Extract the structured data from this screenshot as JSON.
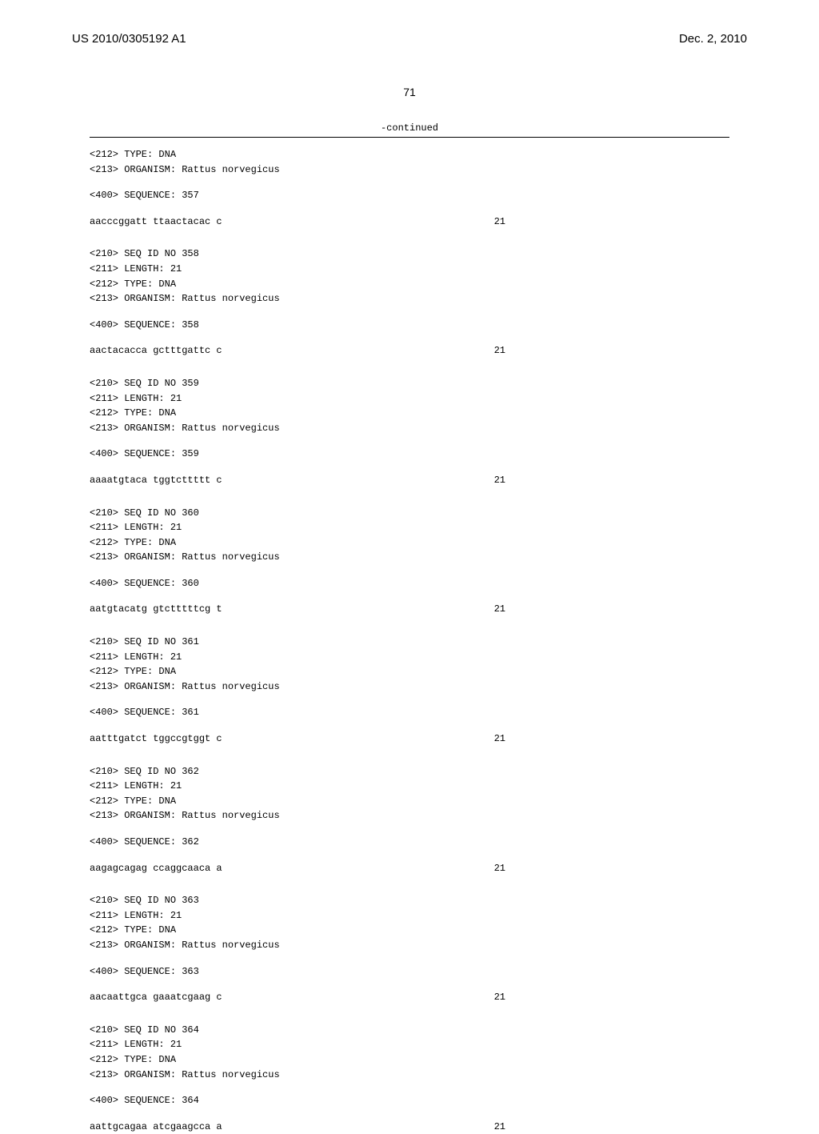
{
  "header": {
    "left": "US 2010/0305192 A1",
    "right": "Dec. 2, 2010"
  },
  "pageNumber": "71",
  "continuedLabel": "-continued",
  "tailBlock": {
    "lines": [
      "<212> TYPE: DNA",
      "<213> ORGANISM: Rattus norvegicus"
    ],
    "seqLabel": "<400> SEQUENCE: 357",
    "sequence": "aacccggatt ttaactacac c",
    "length": "21"
  },
  "blocks": [
    {
      "lines": [
        "<210> SEQ ID NO 358",
        "<211> LENGTH: 21",
        "<212> TYPE: DNA",
        "<213> ORGANISM: Rattus norvegicus"
      ],
      "seqLabel": "<400> SEQUENCE: 358",
      "sequence": "aactacacca gctttgattc c",
      "length": "21"
    },
    {
      "lines": [
        "<210> SEQ ID NO 359",
        "<211> LENGTH: 21",
        "<212> TYPE: DNA",
        "<213> ORGANISM: Rattus norvegicus"
      ],
      "seqLabel": "<400> SEQUENCE: 359",
      "sequence": "aaaatgtaca tggtcttttt c",
      "length": "21"
    },
    {
      "lines": [
        "<210> SEQ ID NO 360",
        "<211> LENGTH: 21",
        "<212> TYPE: DNA",
        "<213> ORGANISM: Rattus norvegicus"
      ],
      "seqLabel": "<400> SEQUENCE: 360",
      "sequence": "aatgtacatg gtctttttcg t",
      "length": "21"
    },
    {
      "lines": [
        "<210> SEQ ID NO 361",
        "<211> LENGTH: 21",
        "<212> TYPE: DNA",
        "<213> ORGANISM: Rattus norvegicus"
      ],
      "seqLabel": "<400> SEQUENCE: 361",
      "sequence": "aatttgatct tggccgtggt c",
      "length": "21"
    },
    {
      "lines": [
        "<210> SEQ ID NO 362",
        "<211> LENGTH: 21",
        "<212> TYPE: DNA",
        "<213> ORGANISM: Rattus norvegicus"
      ],
      "seqLabel": "<400> SEQUENCE: 362",
      "sequence": "aagagcagag ccaggcaaca a",
      "length": "21"
    },
    {
      "lines": [
        "<210> SEQ ID NO 363",
        "<211> LENGTH: 21",
        "<212> TYPE: DNA",
        "<213> ORGANISM: Rattus norvegicus"
      ],
      "seqLabel": "<400> SEQUENCE: 363",
      "sequence": "aacaattgca gaaatcgaag c",
      "length": "21"
    },
    {
      "lines": [
        "<210> SEQ ID NO 364",
        "<211> LENGTH: 21",
        "<212> TYPE: DNA",
        "<213> ORGANISM: Rattus norvegicus"
      ],
      "seqLabel": "<400> SEQUENCE: 364",
      "sequence": "aattgcagaa atcgaagcca a",
      "length": "21"
    }
  ]
}
